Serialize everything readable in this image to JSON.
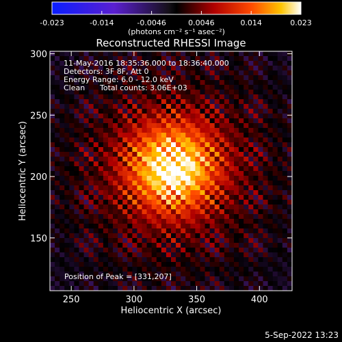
{
  "colorbar": {
    "tick_labels": [
      "-0.023",
      "-0.014",
      "-0.0046",
      "0.0046",
      "0.014",
      "0.023"
    ],
    "unit_label": "(photons cm⁻² s⁻¹ asec⁻²)"
  },
  "chart_data": {
    "type": "heatmap",
    "title": "Reconstructed RHESSI Image",
    "xlabel": "Heliocentric X (arcsec)",
    "ylabel": "Heliocentric Y (arcsec)",
    "xlim": [
      233,
      426
    ],
    "ylim": [
      107,
      302
    ],
    "xticks": [
      250,
      300,
      350,
      400
    ],
    "yticks": [
      150,
      200,
      250,
      300
    ],
    "zlim": [
      -0.023,
      0.023
    ],
    "annotations": {
      "time": "11-May-2016 18:35:36.000 to 18:36:40.000",
      "detectors": "Detectors: 3F 8F, Att 0",
      "energy": "Energy Range: 6.0 - 12.0 keV",
      "clean": "Clean",
      "counts": "Total counts: 3.06E+03",
      "peak_label": "Position of Peak = [331,207]"
    },
    "peak": [
      331,
      207
    ],
    "grid": false
  },
  "footer": {
    "timestamp": "5-Sep-2022 13:23"
  },
  "colors": {
    "background": "#000000",
    "text": "#ffffff"
  }
}
